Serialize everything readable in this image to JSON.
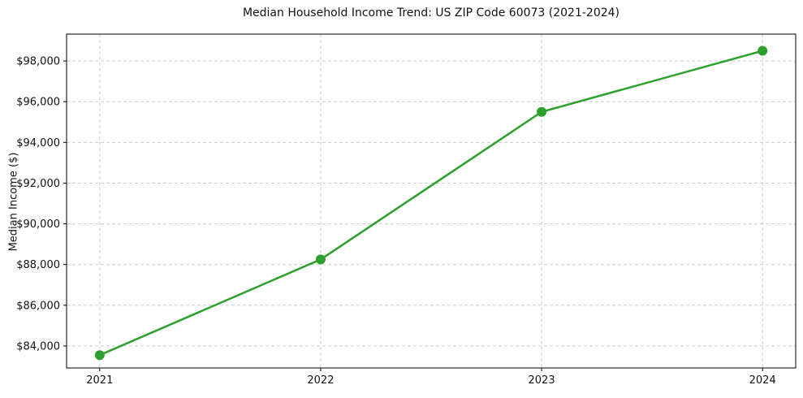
{
  "page": {
    "title": "Median Household Income Trend: US ZIP Code 60073 (2021-2024)"
  },
  "chart_data": {
    "type": "line",
    "title": "Median Household Income Trend: US ZIP Code 60073 (2021-2024)",
    "xlabel": "",
    "ylabel": "Median Income ($)",
    "x": [
      2021,
      2022,
      2023,
      2024
    ],
    "x_tick_labels": [
      "2021",
      "2022",
      "2023",
      "2024"
    ],
    "series": [
      {
        "name": "Median Household Income",
        "values": [
          83550,
          88250,
          95500,
          98500
        ]
      }
    ],
    "xlim": [
      2020.85,
      2024.15
    ],
    "ylim": [
      82920,
      99320
    ],
    "yticks": [
      84000,
      86000,
      88000,
      90000,
      92000,
      94000,
      96000,
      98000
    ],
    "ytick_labels": [
      "$84,000",
      "$86,000",
      "$88,000",
      "$90,000",
      "$92,000",
      "$94,000",
      "$96,000",
      "$98,000"
    ],
    "grid": true,
    "grid_style": "dashed",
    "legend": "none",
    "colors": {
      "line": "#2ca02c",
      "marker": "#2ca02c",
      "grid": "#cccccc",
      "spine": "#000000",
      "text": "#111111",
      "background": "#ffffff"
    },
    "line_width": 2.5,
    "marker": "circle",
    "marker_radius": 6
  }
}
